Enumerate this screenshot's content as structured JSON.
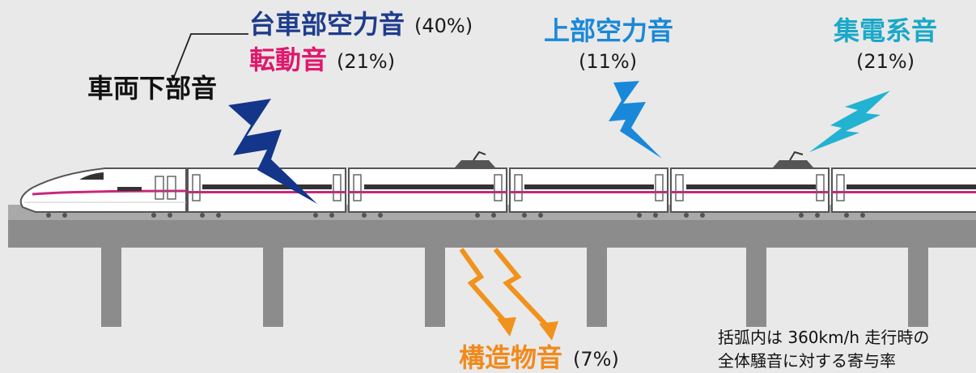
{
  "labels": {
    "undercar": {
      "title": "車両下部音"
    },
    "bogie": {
      "title": "台車部空力音",
      "percent": "(40%)",
      "color": "#1f3c8c"
    },
    "rolling": {
      "title": "転動音",
      "percent": "(21%)",
      "color": "#e0186c"
    },
    "upper": {
      "title": "上部空力音",
      "percent": "(11%)",
      "color": "#1a88d8"
    },
    "collector": {
      "title": "集電系音",
      "percent": "(21%)",
      "color": "#1aa8c8"
    },
    "structure": {
      "title": "構造物音",
      "percent": "(7%)",
      "color": "#f08a1c"
    }
  },
  "note": {
    "line1": "括弧内は 360km/h 走行時の",
    "line2": "全体騒音に対する寄与率"
  },
  "colors": {
    "background": "#e9e9e9",
    "viaduct": "#8c8c8c",
    "rail": "#a8a8a8",
    "train_body": "#ffffff",
    "train_stripe": "#c8287a",
    "bolt_navy": "#13358a",
    "bolt_blue": "#1a88d8",
    "bolt_cyan": "#22b2d2",
    "bolt_orange": "#f0921c"
  },
  "icons": [
    "lightning-bolt-icon",
    "pantograph-icon"
  ]
}
